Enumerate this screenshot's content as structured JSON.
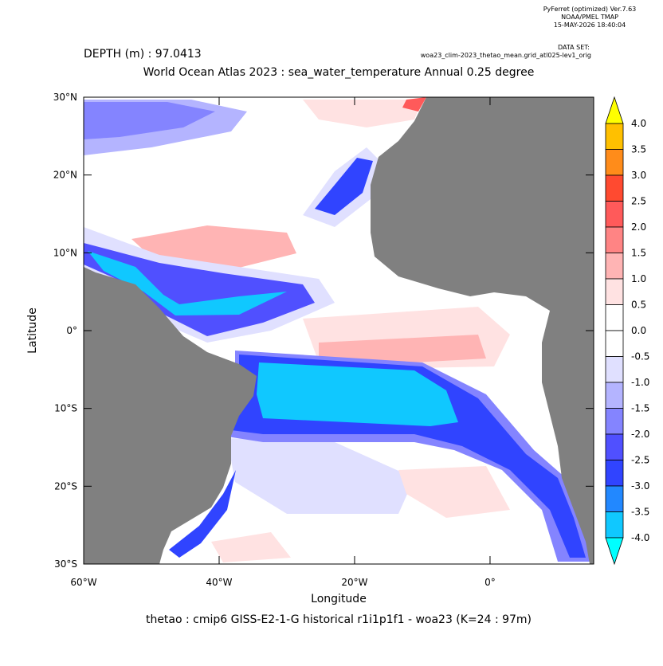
{
  "chart_data": {
    "type": "map",
    "header": [
      "PyFerret (optimized) Ver.7.63",
      "NOAA/PMEL TMAP",
      "15-MAY-2026 18:40:04"
    ],
    "dataset_label": "DATA SET:",
    "dataset": "woa23_clim-2023_thetao_mean.grid_atl025-lev1_orig",
    "depth": "DEPTH (m) : 97.0413",
    "title": "World Ocean Atlas 2023 : sea_water_temperature Annual  0.25 degree",
    "x_label": "Longitude",
    "y_label": "Latitude",
    "footer": "thetao : cmip6 GISS-E2-1-G historical r1i1p1f1 - woa23  (K=24 : 97m)",
    "xlim": [
      -60,
      15.3
    ],
    "ylim": [
      -30,
      30
    ],
    "xticks": [
      {
        "value": -60,
        "label": "60°W"
      },
      {
        "value": -40,
        "label": "40°W"
      },
      {
        "value": -20,
        "label": "20°W"
      },
      {
        "value": 0,
        "label": "0°"
      }
    ],
    "yticks": [
      {
        "value": 30,
        "label": "30°N"
      },
      {
        "value": 20,
        "label": "20°N"
      },
      {
        "value": 10,
        "label": "10°N"
      },
      {
        "value": 0,
        "label": "0°"
      },
      {
        "value": -10,
        "label": "10°S"
      },
      {
        "value": -20,
        "label": "20°S"
      },
      {
        "value": -30,
        "label": "30°S"
      }
    ],
    "colorbar": {
      "levels": [
        {
          "value": 4,
          "label": "4.0"
        },
        {
          "value": 3.5,
          "label": "3.5"
        },
        {
          "value": 3,
          "label": "3.0"
        },
        {
          "value": 2.5,
          "label": "2.5"
        },
        {
          "value": 2,
          "label": "2.0"
        },
        {
          "value": 1.5,
          "label": "1.5"
        },
        {
          "value": 1,
          "label": "1.0"
        },
        {
          "value": 0.5,
          "label": "0.5"
        },
        {
          "value": 0,
          "label": "0.0"
        },
        {
          "value": -0.5,
          "label": "-0.5"
        },
        {
          "value": -1,
          "label": "-1.0"
        },
        {
          "value": -1.5,
          "label": "-1.5"
        },
        {
          "value": -2,
          "label": "-2.0"
        },
        {
          "value": -2.5,
          "label": "-2.5"
        },
        {
          "value": -3,
          "label": "-3.0"
        },
        {
          "value": -3.5,
          "label": "-3.5"
        },
        {
          "value": -4,
          "label": "-4.0"
        }
      ],
      "colors": [
        "#ffc000",
        "#ff8c1a",
        "#ff4a30",
        "#ff5a5a",
        "#ff8484",
        "#ffb4b4",
        "#ffe2e2",
        "#ffffff",
        "#ffffff",
        "#e0e0ff",
        "#b4b4ff",
        "#8484ff",
        "#5050ff",
        "#3044ff",
        "#2288ff",
        "#10c8ff"
      ],
      "over_color": "#ffff00",
      "under_color": "#00ffff"
    }
  }
}
